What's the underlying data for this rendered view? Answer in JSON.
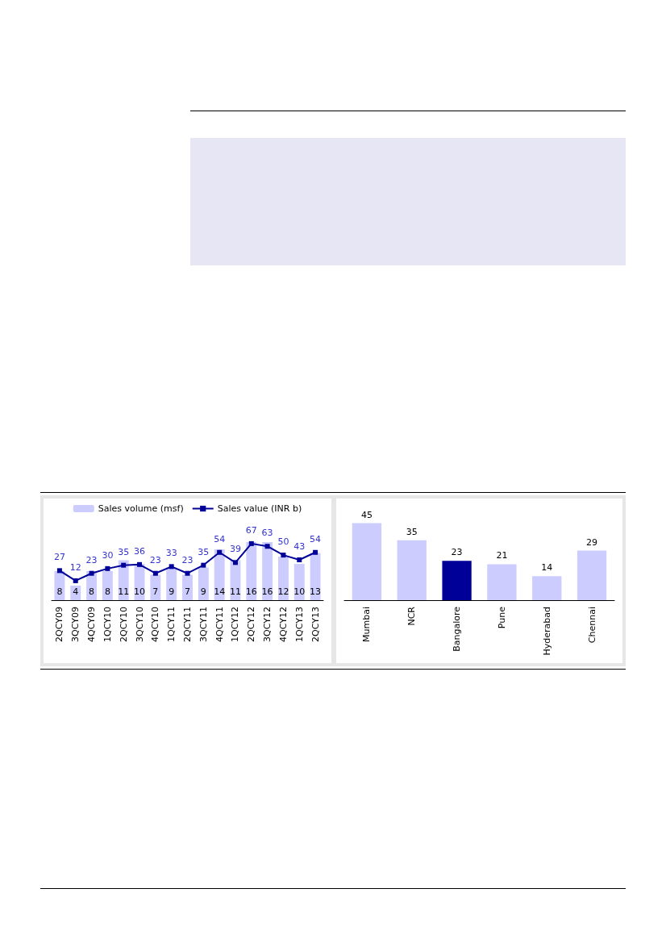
{
  "chart_data": [
    {
      "type": "bar",
      "categories": [
        "2QCY09",
        "3QCY09",
        "4QCY09",
        "1QCY10",
        "2QCY10",
        "3QCY10",
        "4QCY10",
        "1QCY11",
        "2QCY11",
        "3QCY11",
        "4QCY11",
        "1QCY12",
        "2QCY12",
        "3QCY12",
        "4QCY12",
        "1QCY13",
        "2QCY13"
      ],
      "series": [
        {
          "name": "Sales volume (msf)",
          "type": "bar",
          "color": "#ccccff",
          "values": [
            8,
            4,
            8,
            8,
            11,
            10,
            7,
            9,
            7,
            9,
            14,
            11,
            16,
            16,
            12,
            10,
            13
          ]
        },
        {
          "name": "Sales value (INR b)",
          "type": "line",
          "axis": "y2",
          "color": "#000099",
          "values": [
            27,
            12,
            23,
            30,
            35,
            36,
            23,
            33,
            23,
            35,
            54,
            39,
            67,
            63,
            50,
            43,
            54
          ]
        }
      ],
      "data_labels": true,
      "marker": "square",
      "line_style": "solid",
      "grid": false,
      "legend": "top",
      "tick_labels": "x"
    },
    {
      "type": "bar",
      "categories": [
        "Mumbai",
        "NCR",
        "Bangalore",
        "Pune",
        "Hyderabad",
        "Chennai"
      ],
      "values": [
        45,
        35,
        23,
        21,
        14,
        29
      ],
      "colors": [
        "#ccccff",
        "#ccccff",
        "#000099",
        "#ccccff",
        "#ccccff",
        "#ccccff"
      ],
      "data_labels": true,
      "grid": false,
      "legend": false,
      "tick_labels": "x"
    }
  ]
}
